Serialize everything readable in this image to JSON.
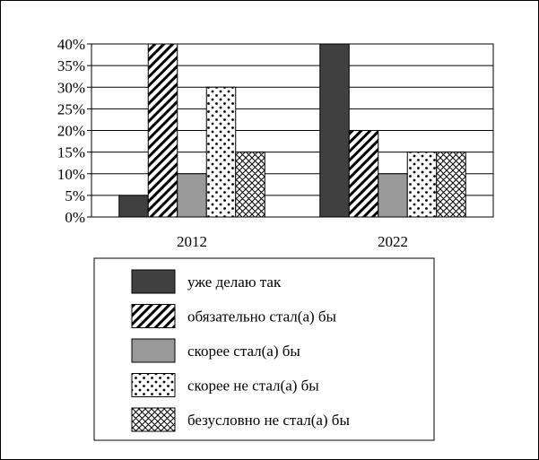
{
  "chart_data": {
    "type": "bar",
    "categories": [
      "2012",
      "2022"
    ],
    "series": [
      {
        "name": "уже делаю так",
        "values": [
          5,
          40
        ],
        "pattern": "solid-dark",
        "color": "#404040"
      },
      {
        "name": "обязательно стал(а) бы",
        "values": [
          40,
          20
        ],
        "pattern": "diagonal-hatch",
        "color": "#000000"
      },
      {
        "name": "скорее стал(а) бы",
        "values": [
          10,
          10
        ],
        "pattern": "solid-gray",
        "color": "#999999"
      },
      {
        "name": "скорее не стал(а) бы",
        "values": [
          30,
          15
        ],
        "pattern": "dots",
        "color": "#000000"
      },
      {
        "name": "безусловно не стал(а) бы",
        "values": [
          15,
          15
        ],
        "pattern": "crosshatch",
        "color": "#000000"
      }
    ],
    "yticks": [
      "0%",
      "5%",
      "10%",
      "15%",
      "20%",
      "25%",
      "30%",
      "35%",
      "40%"
    ],
    "ylim": [
      0,
      40
    ],
    "ystep": 5,
    "grid": true,
    "legend_position": "bottom"
  }
}
